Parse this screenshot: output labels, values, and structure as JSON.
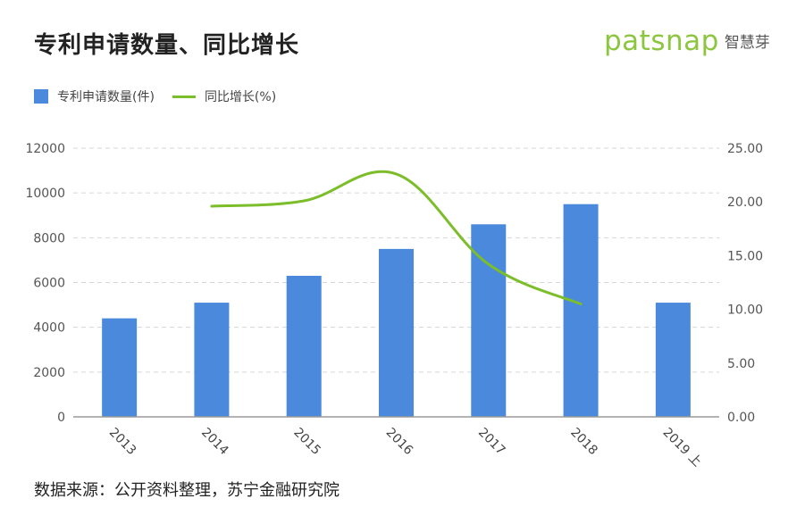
{
  "title": "专利申请数量、同比增长",
  "logo": {
    "word": "patsnap",
    "cn": "智慧芽"
  },
  "source": "数据来源：公开资料整理，苏宁金融研究院",
  "colors": {
    "bar": "#4a89dc",
    "line": "#7cbd2a",
    "logo": "#8cc63f"
  },
  "chart_data": {
    "type": "bar",
    "title": "专利申请数量、同比增长",
    "categories": [
      "2013",
      "2014",
      "2015",
      "2016",
      "2017",
      "2018",
      "2019 上"
    ],
    "series": [
      {
        "name": "专利申请数量(件)",
        "type": "bar",
        "axis": "left",
        "values": [
          4400,
          5100,
          6300,
          7500,
          8600,
          9500,
          5100
        ]
      },
      {
        "name": "同比增长(%)",
        "type": "line",
        "axis": "right",
        "values": [
          null,
          19.6,
          20.1,
          22.6,
          14.2,
          10.5,
          null
        ]
      }
    ],
    "y_left": {
      "ylim": [
        0,
        12000
      ],
      "ticks": [
        "0",
        "2000",
        "4000",
        "6000",
        "8000",
        "10000",
        "12000"
      ]
    },
    "y_right": {
      "ylim": [
        0,
        25
      ],
      "ticks": [
        "0.00",
        "5.00",
        "10.00",
        "15.00",
        "20.00",
        "25.00"
      ]
    },
    "grid": true,
    "legend": "top-left"
  }
}
